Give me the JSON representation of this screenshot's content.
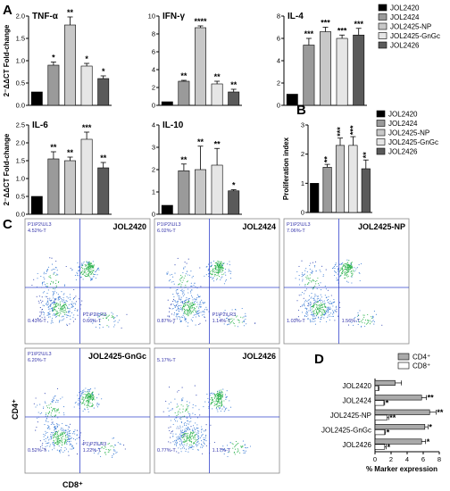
{
  "panel_labels": {
    "a": "A",
    "b": "B",
    "c": "C",
    "d": "D"
  },
  "legend_A": [
    "JOL2420",
    "JOL2424",
    "JOL2425-NP",
    "JOL2425-GnGc",
    "JOL2426"
  ],
  "legend_B": [
    "JOL2420",
    "JOL2424",
    "JOL2425-NP",
    "JOL2425-GnGc",
    "JOL2426"
  ],
  "legend_D": [
    "CD4⁺",
    "CD8⁺"
  ],
  "group_colors": [
    "#000000",
    "#9a9a9a",
    "#c8c8c8",
    "#e6e6e6",
    "#5a5a5a"
  ],
  "ylabel_A": "2⁻ΔΔCT Fold-change",
  "flow_axis": {
    "x": "CD8⁺",
    "y": "CD4⁺"
  },
  "flow_plots": [
    {
      "title": "JOL2420",
      "ul": "P1\\P2\\UL3",
      "ul_pct": "4.52%-T",
      "ll_pct": "0.43%-T",
      "lr": "P1\\P2\\LR3",
      "lr_pct": "0.66%-T"
    },
    {
      "title": "JOL2424",
      "ul": "P1\\P2\\UL3",
      "ul_pct": "6.02%-T",
      "ll_pct": "0.87%-T",
      "lr": "P1\\P2\\LR3",
      "lr_pct": "1.14%-T"
    },
    {
      "title": "JOL2425-NP",
      "ul": "P1\\P2\\UL3",
      "ul_pct": "7.06%-T",
      "ll_pct": "1.03%-T",
      "lr": "",
      "lr_pct": "1.56%-T"
    },
    {
      "title": "JOL2425-GnGc",
      "ul": "P1\\P2\\UL3",
      "ul_pct": "6.20%-T",
      "ll_pct": "0.52%-T",
      "lr": "P1\\P2\\LR3",
      "lr_pct": "1.22%-T"
    },
    {
      "title": "JOL2426",
      "ul": "",
      "ul_pct": "5.17%-T",
      "ll_pct": "0.77%-T",
      "lr": "",
      "lr_pct": "1.17%-T"
    }
  ],
  "chart_data": [
    {
      "type": "bar",
      "title": "TNF-α",
      "categories": [
        "JOL2420",
        "JOL2424",
        "JOL2425-NP",
        "JOL2425-GnGc",
        "JOL2426"
      ],
      "values": [
        0.3,
        0.9,
        1.8,
        0.88,
        0.6
      ],
      "errors": [
        0,
        0.07,
        0.18,
        0.06,
        0.06
      ],
      "sig": [
        "",
        "*",
        "**",
        "*",
        "*"
      ],
      "ylim": [
        0,
        2
      ],
      "yticks": [
        0.0,
        0.5,
        1.0,
        1.5,
        2.0
      ],
      "ylabel": "2⁻ΔΔCT Fold-change"
    },
    {
      "type": "bar",
      "title": "IFN-γ",
      "categories": [
        "JOL2420",
        "JOL2424",
        "JOL2425-NP",
        "JOL2425-GnGc",
        "JOL2426"
      ],
      "values": [
        0.4,
        2.7,
        8.7,
        2.4,
        1.5
      ],
      "errors": [
        0,
        0.1,
        0.2,
        0.3,
        0.3
      ],
      "sig": [
        "",
        "**",
        "****",
        "**",
        "**"
      ],
      "ylim": [
        0,
        10
      ],
      "yticks": [
        0,
        2,
        4,
        6,
        8,
        10
      ],
      "ylabel": ""
    },
    {
      "type": "bar",
      "title": "IL-4",
      "categories": [
        "JOL2420",
        "JOL2424",
        "JOL2425-NP",
        "JOL2425-GnGc",
        "JOL2426"
      ],
      "values": [
        1,
        5.4,
        6.6,
        6.0,
        6.3
      ],
      "errors": [
        0,
        0.6,
        0.4,
        0.3,
        0.6
      ],
      "sig": [
        "",
        "***",
        "***",
        "***",
        "***"
      ],
      "ylim": [
        0,
        8
      ],
      "yticks": [
        0,
        2,
        4,
        6,
        8
      ],
      "ylabel": ""
    },
    {
      "type": "bar",
      "title": "IL-6",
      "categories": [
        "JOL2420",
        "JOL2424",
        "JOL2425-NP",
        "JOL2425-GnGc",
        "JOL2426"
      ],
      "values": [
        0.5,
        1.55,
        1.5,
        2.1,
        1.3
      ],
      "errors": [
        0,
        0.2,
        0.1,
        0.2,
        0.15
      ],
      "sig": [
        "",
        "**",
        "**",
        "***",
        "**"
      ],
      "ylim": [
        0,
        2.5
      ],
      "yticks": [
        0.0,
        0.5,
        1.0,
        1.5,
        2.0,
        2.5
      ],
      "ylabel": "2⁻ΔΔCT Fold-change"
    },
    {
      "type": "bar",
      "title": "IL-10",
      "categories": [
        "JOL2420",
        "JOL2424",
        "JOL2425-NP",
        "JOL2425-GnGc",
        "JOL2426"
      ],
      "values": [
        0.4,
        1.95,
        2.0,
        2.2,
        1.05
      ],
      "errors": [
        0,
        0.3,
        1.05,
        0.75,
        0.05
      ],
      "sig": [
        "",
        "**",
        "**",
        "**",
        "*"
      ],
      "ylim": [
        0,
        4
      ],
      "yticks": [
        0,
        1,
        2,
        3,
        4
      ],
      "ylabel": ""
    },
    {
      "type": "bar",
      "title": "",
      "categories": [
        "JOL2420",
        "JOL2424",
        "JOL2425-NP",
        "JOL2425-GnGc",
        "JOL2426"
      ],
      "values": [
        1.0,
        1.55,
        2.3,
        2.3,
        1.5
      ],
      "errors": [
        0,
        0.1,
        0.25,
        0.3,
        0.3
      ],
      "sig": [
        "",
        "**",
        "***",
        "***",
        "**"
      ],
      "ylim": [
        0,
        3
      ],
      "yticks": [
        0,
        1,
        2,
        3
      ],
      "ylabel": "Proliferation index"
    },
    {
      "type": "bar",
      "orientation": "horizontal",
      "title": "",
      "categories": [
        "JOL2420",
        "JOL2424",
        "JOL2425-NP",
        "JOL2425-GnGc",
        "JOL2426"
      ],
      "series": [
        {
          "name": "CD4⁺",
          "values": [
            2.5,
            5.8,
            6.8,
            6.2,
            5.8
          ],
          "errors": [
            0.8,
            0.6,
            0.8,
            0.4,
            0.5
          ],
          "sig": [
            "",
            "**",
            "**",
            "*",
            "*"
          ]
        },
        {
          "name": "CD8⁺",
          "values": [
            0.4,
            1.1,
            1.5,
            1.2,
            1.2
          ],
          "errors": [
            0.1,
            0.1,
            0.2,
            0.1,
            0.2
          ],
          "sig": [
            "",
            "*",
            "**",
            "*",
            "*"
          ]
        }
      ],
      "xlim": [
        0,
        8
      ],
      "xticks": [
        0,
        2,
        4,
        6,
        8
      ],
      "xlabel": "% Marker expression"
    }
  ]
}
